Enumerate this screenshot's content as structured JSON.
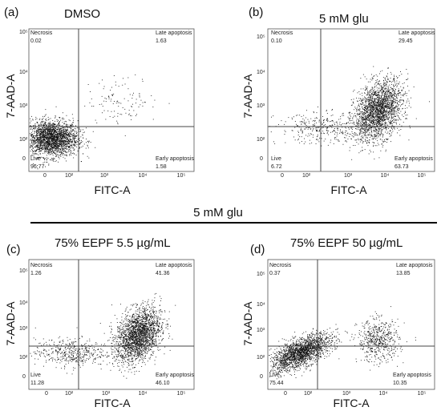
{
  "group_label": "5 mM glu",
  "chart_data": [
    {
      "type": "scatter",
      "panel": "(a)",
      "title": "DMSO",
      "xlabel": "FITC-A",
      "ylabel": "7-AAD-A",
      "x_ticks": [
        "0",
        "10²",
        "10³",
        "10⁴",
        "10⁵"
      ],
      "y_ticks": [
        "0",
        "10²",
        "10³",
        "10⁴",
        "10⁵"
      ],
      "axis_scale": "biexponential",
      "quadrants": {
        "upper_left": {
          "name": "Necrosis",
          "value": "0.02"
        },
        "upper_right": {
          "name": "Late apoptosis",
          "value": "1.63"
        },
        "lower_left": {
          "name": "Live",
          "value": "96.77"
        },
        "lower_right": {
          "name": "Early apoptosis",
          "value": "1.58"
        }
      },
      "populations": [
        {
          "x_decade": 0.15,
          "y_decade": 0.7,
          "spread_x": 0.45,
          "spread_y": 0.35,
          "count": 2400
        },
        {
          "x_decade": 2.6,
          "y_decade": 2.2,
          "spread_x": 0.6,
          "spread_y": 0.45,
          "count": 110
        }
      ]
    },
    {
      "type": "scatter",
      "panel": "(b)",
      "title": "5 mM glu",
      "xlabel": "FITC-A",
      "ylabel": "7-AAD-A",
      "x_ticks": [
        "0",
        "10²",
        "10³",
        "10⁴",
        "10⁵"
      ],
      "y_ticks": [
        "0",
        "10²",
        "10³",
        "10⁴",
        "10⁵"
      ],
      "axis_scale": "biexponential",
      "quadrants": {
        "upper_left": {
          "name": "Necrosis",
          "value": "0.10"
        },
        "upper_right": {
          "name": "Late apoptosis",
          "value": "29.45"
        },
        "lower_left": {
          "name": "Live",
          "value": "6.72"
        },
        "lower_right": {
          "name": "Early apoptosis",
          "value": "63.73"
        }
      },
      "populations": [
        {
          "x_decade": 3.1,
          "y_decade": 1.8,
          "spread_x": 0.4,
          "spread_y": 0.55,
          "count": 2200
        },
        {
          "x_decade": 1.3,
          "y_decade": 1.1,
          "spread_x": 0.8,
          "spread_y": 0.3,
          "count": 350
        }
      ]
    },
    {
      "type": "scatter",
      "panel": "(c)",
      "title": "75% EEPF 5.5 µg/mL",
      "xlabel": "FITC-A",
      "ylabel": "7-AAD-A",
      "x_ticks": [
        "0",
        "10²",
        "10³",
        "10⁴",
        "10⁵"
      ],
      "y_ticks": [
        "0",
        "10²",
        "10³",
        "10⁴",
        "10⁵"
      ],
      "axis_scale": "biexponential",
      "quadrants": {
        "upper_left": {
          "name": "Necrosis",
          "value": "1.26"
        },
        "upper_right": {
          "name": "Late apoptosis",
          "value": "41.36"
        },
        "lower_left": {
          "name": "Live",
          "value": "11.28"
        },
        "lower_right": {
          "name": "Early apoptosis",
          "value": "46.10"
        }
      },
      "populations": [
        {
          "x_decade": 3.1,
          "y_decade": 1.75,
          "spread_x": 0.38,
          "spread_y": 0.55,
          "count": 2200
        },
        {
          "x_decade": 0.8,
          "y_decade": 1.0,
          "spread_x": 0.6,
          "spread_y": 0.3,
          "count": 450
        }
      ]
    },
    {
      "type": "scatter",
      "panel": "(d)",
      "title": "75% EEPF 50 µg/mL",
      "xlabel": "FITC-A",
      "ylabel": "7-AAD-A",
      "x_ticks": [
        "0",
        "10²",
        "10³",
        "10⁴",
        "10⁵"
      ],
      "y_ticks": [
        "0",
        "10²",
        "10³",
        "10⁴",
        "10⁵"
      ],
      "axis_scale": "biexponential",
      "quadrants": {
        "upper_left": {
          "name": "Necrosis",
          "value": "0.37"
        },
        "upper_right": {
          "name": "Late apoptosis",
          "value": "13.85"
        },
        "lower_left": {
          "name": "Live",
          "value": "75.44"
        },
        "lower_right": {
          "name": "Early apoptosis",
          "value": "10.35"
        }
      },
      "populations": [
        {
          "x_decade": 0.5,
          "y_decade": 1.0,
          "spread_x": 0.5,
          "spread_y": 0.3,
          "count": 2000
        },
        {
          "x_decade": 3.1,
          "y_decade": 1.5,
          "spread_x": 0.35,
          "spread_y": 0.45,
          "count": 550
        }
      ]
    }
  ]
}
